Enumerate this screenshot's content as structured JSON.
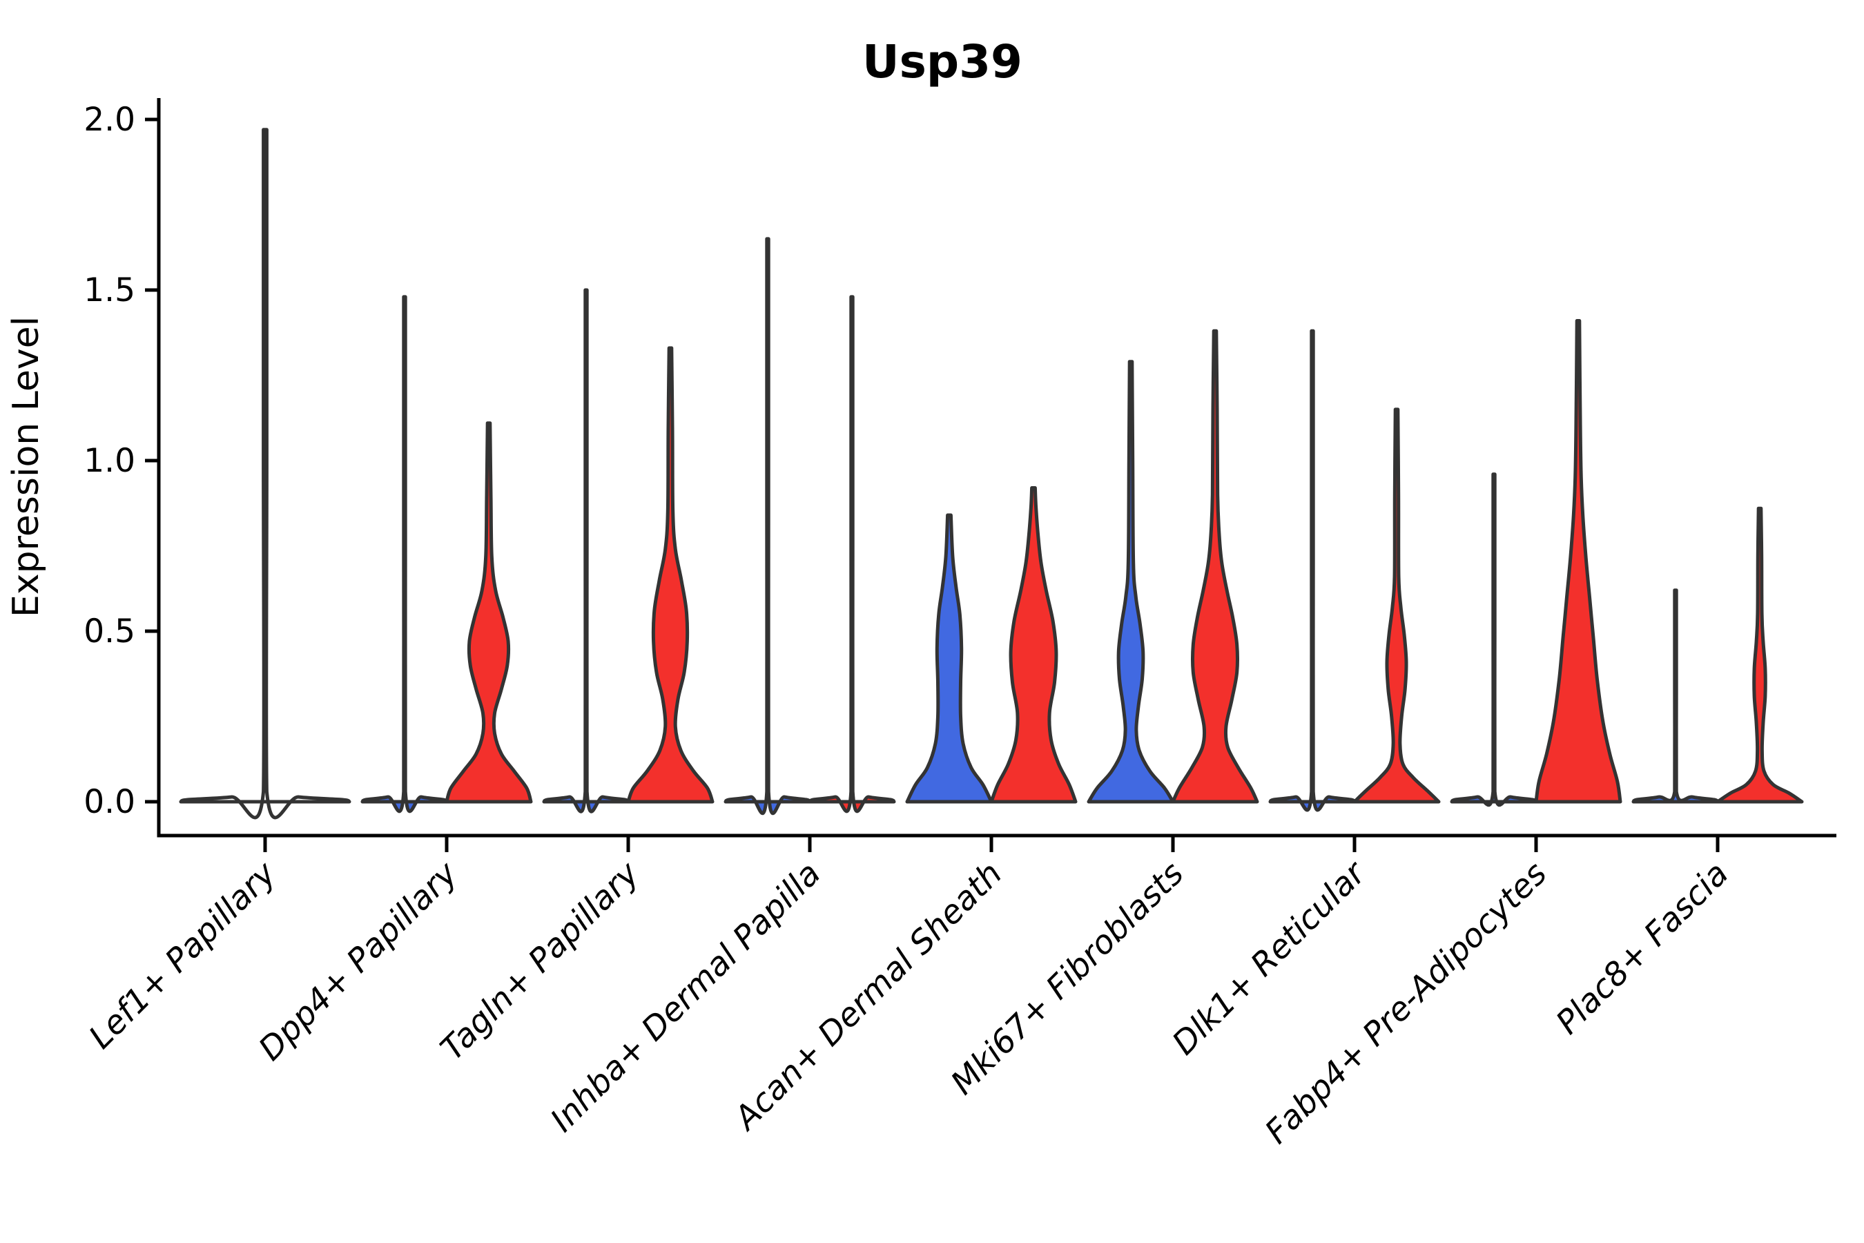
{
  "title": "Usp39",
  "chart_data": {
    "type": "violin",
    "title": "Usp39",
    "xlabel": "",
    "ylabel": "Expression Level",
    "ylim": [
      0.0,
      2.0
    ],
    "yticks": [
      "0.0",
      "0.5",
      "1.0",
      "1.5",
      "2.0"
    ],
    "ytick_values": [
      0.0,
      0.5,
      1.0,
      1.5,
      2.0
    ],
    "grid": false,
    "legend": "none",
    "categories": [
      "Lef1+ Papillary",
      "Dpp4+ Papillary",
      "Tagln+ Papillary",
      "Inhba+ Dermal Papilla",
      "Acan+ Dermal Sheath",
      "Mki67+ Fibroblasts",
      "Dlk1+ Reticular",
      "Fabp4+ Pre-Adipocytes",
      "Plac8+ Fascia"
    ],
    "colors": {
      "blue_group": "#4169E1",
      "red_group": "#F3302C",
      "violin_outline": "#333333",
      "axis": "#000000",
      "background": "#FFFFFF"
    },
    "violins": [
      {
        "category_index": 0,
        "slot": "center",
        "width": "full",
        "fill": "none",
        "max_expression": 1.97,
        "shape": "flat-with-spike",
        "profile": [
          [
            0,
            1
          ],
          [
            0.006,
            0.92
          ],
          [
            0.014,
            0.4
          ],
          [
            0.03,
            0.02
          ],
          [
            1.0,
            0.02
          ],
          [
            1.97,
            0.02
          ]
        ]
      },
      {
        "category_index": 1,
        "slot": "left",
        "width": "half",
        "fill": "blue_group",
        "max_expression": 1.48,
        "shape": "flat-with-spike",
        "profile": [
          [
            0,
            1
          ],
          [
            0.006,
            0.92
          ],
          [
            0.014,
            0.4
          ],
          [
            0.03,
            0.02
          ],
          [
            0.75,
            0.02
          ],
          [
            1.48,
            0.02
          ]
        ]
      },
      {
        "category_index": 1,
        "slot": "right",
        "width": "half",
        "fill": "red_group",
        "max_expression": 1.11,
        "shape": "base-bulge-and-mid-bulge-at-0.45",
        "profile": [
          [
            0,
            1
          ],
          [
            0.04,
            0.9
          ],
          [
            0.09,
            0.6
          ],
          [
            0.14,
            0.3
          ],
          [
            0.2,
            0.14
          ],
          [
            0.26,
            0.14
          ],
          [
            0.33,
            0.3
          ],
          [
            0.4,
            0.44
          ],
          [
            0.47,
            0.46
          ],
          [
            0.54,
            0.34
          ],
          [
            0.62,
            0.16
          ],
          [
            0.72,
            0.07
          ],
          [
            0.9,
            0.05
          ],
          [
            1.11,
            0.03
          ]
        ]
      },
      {
        "category_index": 2,
        "slot": "left",
        "width": "half",
        "fill": "blue_group",
        "max_expression": 1.5,
        "shape": "flat-with-spike",
        "profile": [
          [
            0,
            1
          ],
          [
            0.006,
            0.92
          ],
          [
            0.014,
            0.4
          ],
          [
            0.03,
            0.02
          ],
          [
            0.76,
            0.02
          ],
          [
            1.5,
            0.02
          ]
        ]
      },
      {
        "category_index": 2,
        "slot": "right",
        "width": "half",
        "fill": "red_group",
        "max_expression": 1.33,
        "shape": "base-bulge-and-mid-bulge-at-0.5",
        "profile": [
          [
            0,
            1
          ],
          [
            0.04,
            0.88
          ],
          [
            0.09,
            0.55
          ],
          [
            0.15,
            0.25
          ],
          [
            0.22,
            0.12
          ],
          [
            0.3,
            0.18
          ],
          [
            0.38,
            0.33
          ],
          [
            0.47,
            0.4
          ],
          [
            0.56,
            0.38
          ],
          [
            0.65,
            0.26
          ],
          [
            0.74,
            0.12
          ],
          [
            0.85,
            0.06
          ],
          [
            1.1,
            0.05
          ],
          [
            1.33,
            0.03
          ]
        ]
      },
      {
        "category_index": 3,
        "slot": "left",
        "width": "half",
        "fill": "blue_group",
        "max_expression": 1.65,
        "shape": "flat-with-spike",
        "profile": [
          [
            0,
            1
          ],
          [
            0.006,
            0.92
          ],
          [
            0.014,
            0.4
          ],
          [
            0.03,
            0.02
          ],
          [
            0.83,
            0.02
          ],
          [
            1.65,
            0.02
          ]
        ]
      },
      {
        "category_index": 3,
        "slot": "right",
        "width": "half",
        "fill": "red_group",
        "max_expression": 1.48,
        "shape": "flat-with-spike",
        "profile": [
          [
            0,
            1
          ],
          [
            0.006,
            0.92
          ],
          [
            0.014,
            0.4
          ],
          [
            0.03,
            0.02
          ],
          [
            0.75,
            0.02
          ],
          [
            1.48,
            0.02
          ]
        ]
      },
      {
        "category_index": 4,
        "slot": "left",
        "width": "half",
        "fill": "blue_group",
        "max_expression": 0.84,
        "shape": "wide-base-taper",
        "profile": [
          [
            0,
            1
          ],
          [
            0.05,
            0.8
          ],
          [
            0.1,
            0.52
          ],
          [
            0.17,
            0.33
          ],
          [
            0.25,
            0.27
          ],
          [
            0.35,
            0.27
          ],
          [
            0.45,
            0.29
          ],
          [
            0.55,
            0.25
          ],
          [
            0.63,
            0.16
          ],
          [
            0.72,
            0.08
          ],
          [
            0.84,
            0.04
          ]
        ]
      },
      {
        "category_index": 4,
        "slot": "right",
        "width": "half",
        "fill": "red_group",
        "max_expression": 0.92,
        "shape": "wide-base-and-mid-bulge-at-0.4",
        "profile": [
          [
            0,
            1
          ],
          [
            0.05,
            0.85
          ],
          [
            0.11,
            0.6
          ],
          [
            0.18,
            0.42
          ],
          [
            0.26,
            0.38
          ],
          [
            0.35,
            0.5
          ],
          [
            0.44,
            0.54
          ],
          [
            0.53,
            0.46
          ],
          [
            0.62,
            0.3
          ],
          [
            0.7,
            0.18
          ],
          [
            0.78,
            0.11
          ],
          [
            0.86,
            0.06
          ],
          [
            0.92,
            0.04
          ]
        ]
      },
      {
        "category_index": 5,
        "slot": "left",
        "width": "half",
        "fill": "blue_group",
        "max_expression": 1.29,
        "shape": "base-bulge-and-mid-bulge-at-0.4",
        "profile": [
          [
            0,
            1
          ],
          [
            0.04,
            0.8
          ],
          [
            0.09,
            0.45
          ],
          [
            0.15,
            0.2
          ],
          [
            0.21,
            0.13
          ],
          [
            0.28,
            0.18
          ],
          [
            0.36,
            0.27
          ],
          [
            0.44,
            0.29
          ],
          [
            0.52,
            0.22
          ],
          [
            0.6,
            0.12
          ],
          [
            0.7,
            0.06
          ],
          [
            1.0,
            0.045
          ],
          [
            1.29,
            0.03
          ]
        ]
      },
      {
        "category_index": 5,
        "slot": "right",
        "width": "half",
        "fill": "red_group",
        "max_expression": 1.38,
        "shape": "base-bulge-and-large-mid-bulge-at-0.42",
        "profile": [
          [
            0,
            1
          ],
          [
            0.04,
            0.85
          ],
          [
            0.1,
            0.55
          ],
          [
            0.16,
            0.3
          ],
          [
            0.22,
            0.26
          ],
          [
            0.3,
            0.4
          ],
          [
            0.38,
            0.52
          ],
          [
            0.46,
            0.52
          ],
          [
            0.54,
            0.42
          ],
          [
            0.62,
            0.28
          ],
          [
            0.7,
            0.16
          ],
          [
            0.78,
            0.1
          ],
          [
            0.9,
            0.06
          ],
          [
            1.15,
            0.05
          ],
          [
            1.38,
            0.03
          ]
        ]
      },
      {
        "category_index": 6,
        "slot": "left",
        "width": "half",
        "fill": "blue_group",
        "max_expression": 1.38,
        "shape": "flat-with-spike",
        "profile": [
          [
            0,
            1
          ],
          [
            0.006,
            0.92
          ],
          [
            0.014,
            0.4
          ],
          [
            0.03,
            0.02
          ],
          [
            0.7,
            0.02
          ],
          [
            1.38,
            0.02
          ]
        ]
      },
      {
        "category_index": 6,
        "slot": "right",
        "width": "half",
        "fill": "red_group",
        "max_expression": 1.15,
        "shape": "small-base-bulge-and-narrow-mid-bulge-at-0.42",
        "profile": [
          [
            0,
            1
          ],
          [
            0.03,
            0.75
          ],
          [
            0.07,
            0.4
          ],
          [
            0.11,
            0.15
          ],
          [
            0.17,
            0.08
          ],
          [
            0.25,
            0.12
          ],
          [
            0.33,
            0.2
          ],
          [
            0.41,
            0.23
          ],
          [
            0.49,
            0.18
          ],
          [
            0.57,
            0.1
          ],
          [
            0.66,
            0.05
          ],
          [
            0.9,
            0.045
          ],
          [
            1.15,
            0.03
          ]
        ]
      },
      {
        "category_index": 7,
        "slot": "left",
        "width": "half",
        "fill": "blue_group",
        "max_expression": 0.96,
        "shape": "flat-with-spike",
        "profile": [
          [
            0,
            1
          ],
          [
            0.006,
            0.92
          ],
          [
            0.014,
            0.4
          ],
          [
            0.03,
            0.02
          ],
          [
            0.5,
            0.02
          ],
          [
            0.96,
            0.02
          ]
        ]
      },
      {
        "category_index": 7,
        "slot": "right",
        "width": "half",
        "fill": "red_group",
        "max_expression": 1.41,
        "shape": "broad-cone",
        "profile": [
          [
            0,
            1
          ],
          [
            0.06,
            0.93
          ],
          [
            0.14,
            0.75
          ],
          [
            0.24,
            0.58
          ],
          [
            0.36,
            0.45
          ],
          [
            0.48,
            0.36
          ],
          [
            0.6,
            0.27
          ],
          [
            0.72,
            0.18
          ],
          [
            0.84,
            0.11
          ],
          [
            0.95,
            0.07
          ],
          [
            1.1,
            0.05
          ],
          [
            1.41,
            0.03
          ]
        ]
      },
      {
        "category_index": 8,
        "slot": "left",
        "width": "half",
        "fill": "blue_group",
        "max_expression": 0.62,
        "shape": "flat-with-spike",
        "profile": [
          [
            0,
            1
          ],
          [
            0.006,
            0.92
          ],
          [
            0.014,
            0.4
          ],
          [
            0.03,
            0.02
          ],
          [
            0.32,
            0.02
          ],
          [
            0.62,
            0.02
          ]
        ]
      },
      {
        "category_index": 8,
        "slot": "right",
        "width": "half",
        "fill": "red_group",
        "max_expression": 0.86,
        "shape": "small-base-bulge-and-small-mid-bulge-at-0.38",
        "profile": [
          [
            0,
            1
          ],
          [
            0.025,
            0.7
          ],
          [
            0.05,
            0.32
          ],
          [
            0.09,
            0.1
          ],
          [
            0.15,
            0.055
          ],
          [
            0.23,
            0.08
          ],
          [
            0.31,
            0.13
          ],
          [
            0.39,
            0.13
          ],
          [
            0.47,
            0.08
          ],
          [
            0.55,
            0.05
          ],
          [
            0.72,
            0.045
          ],
          [
            0.86,
            0.03
          ]
        ]
      }
    ]
  }
}
